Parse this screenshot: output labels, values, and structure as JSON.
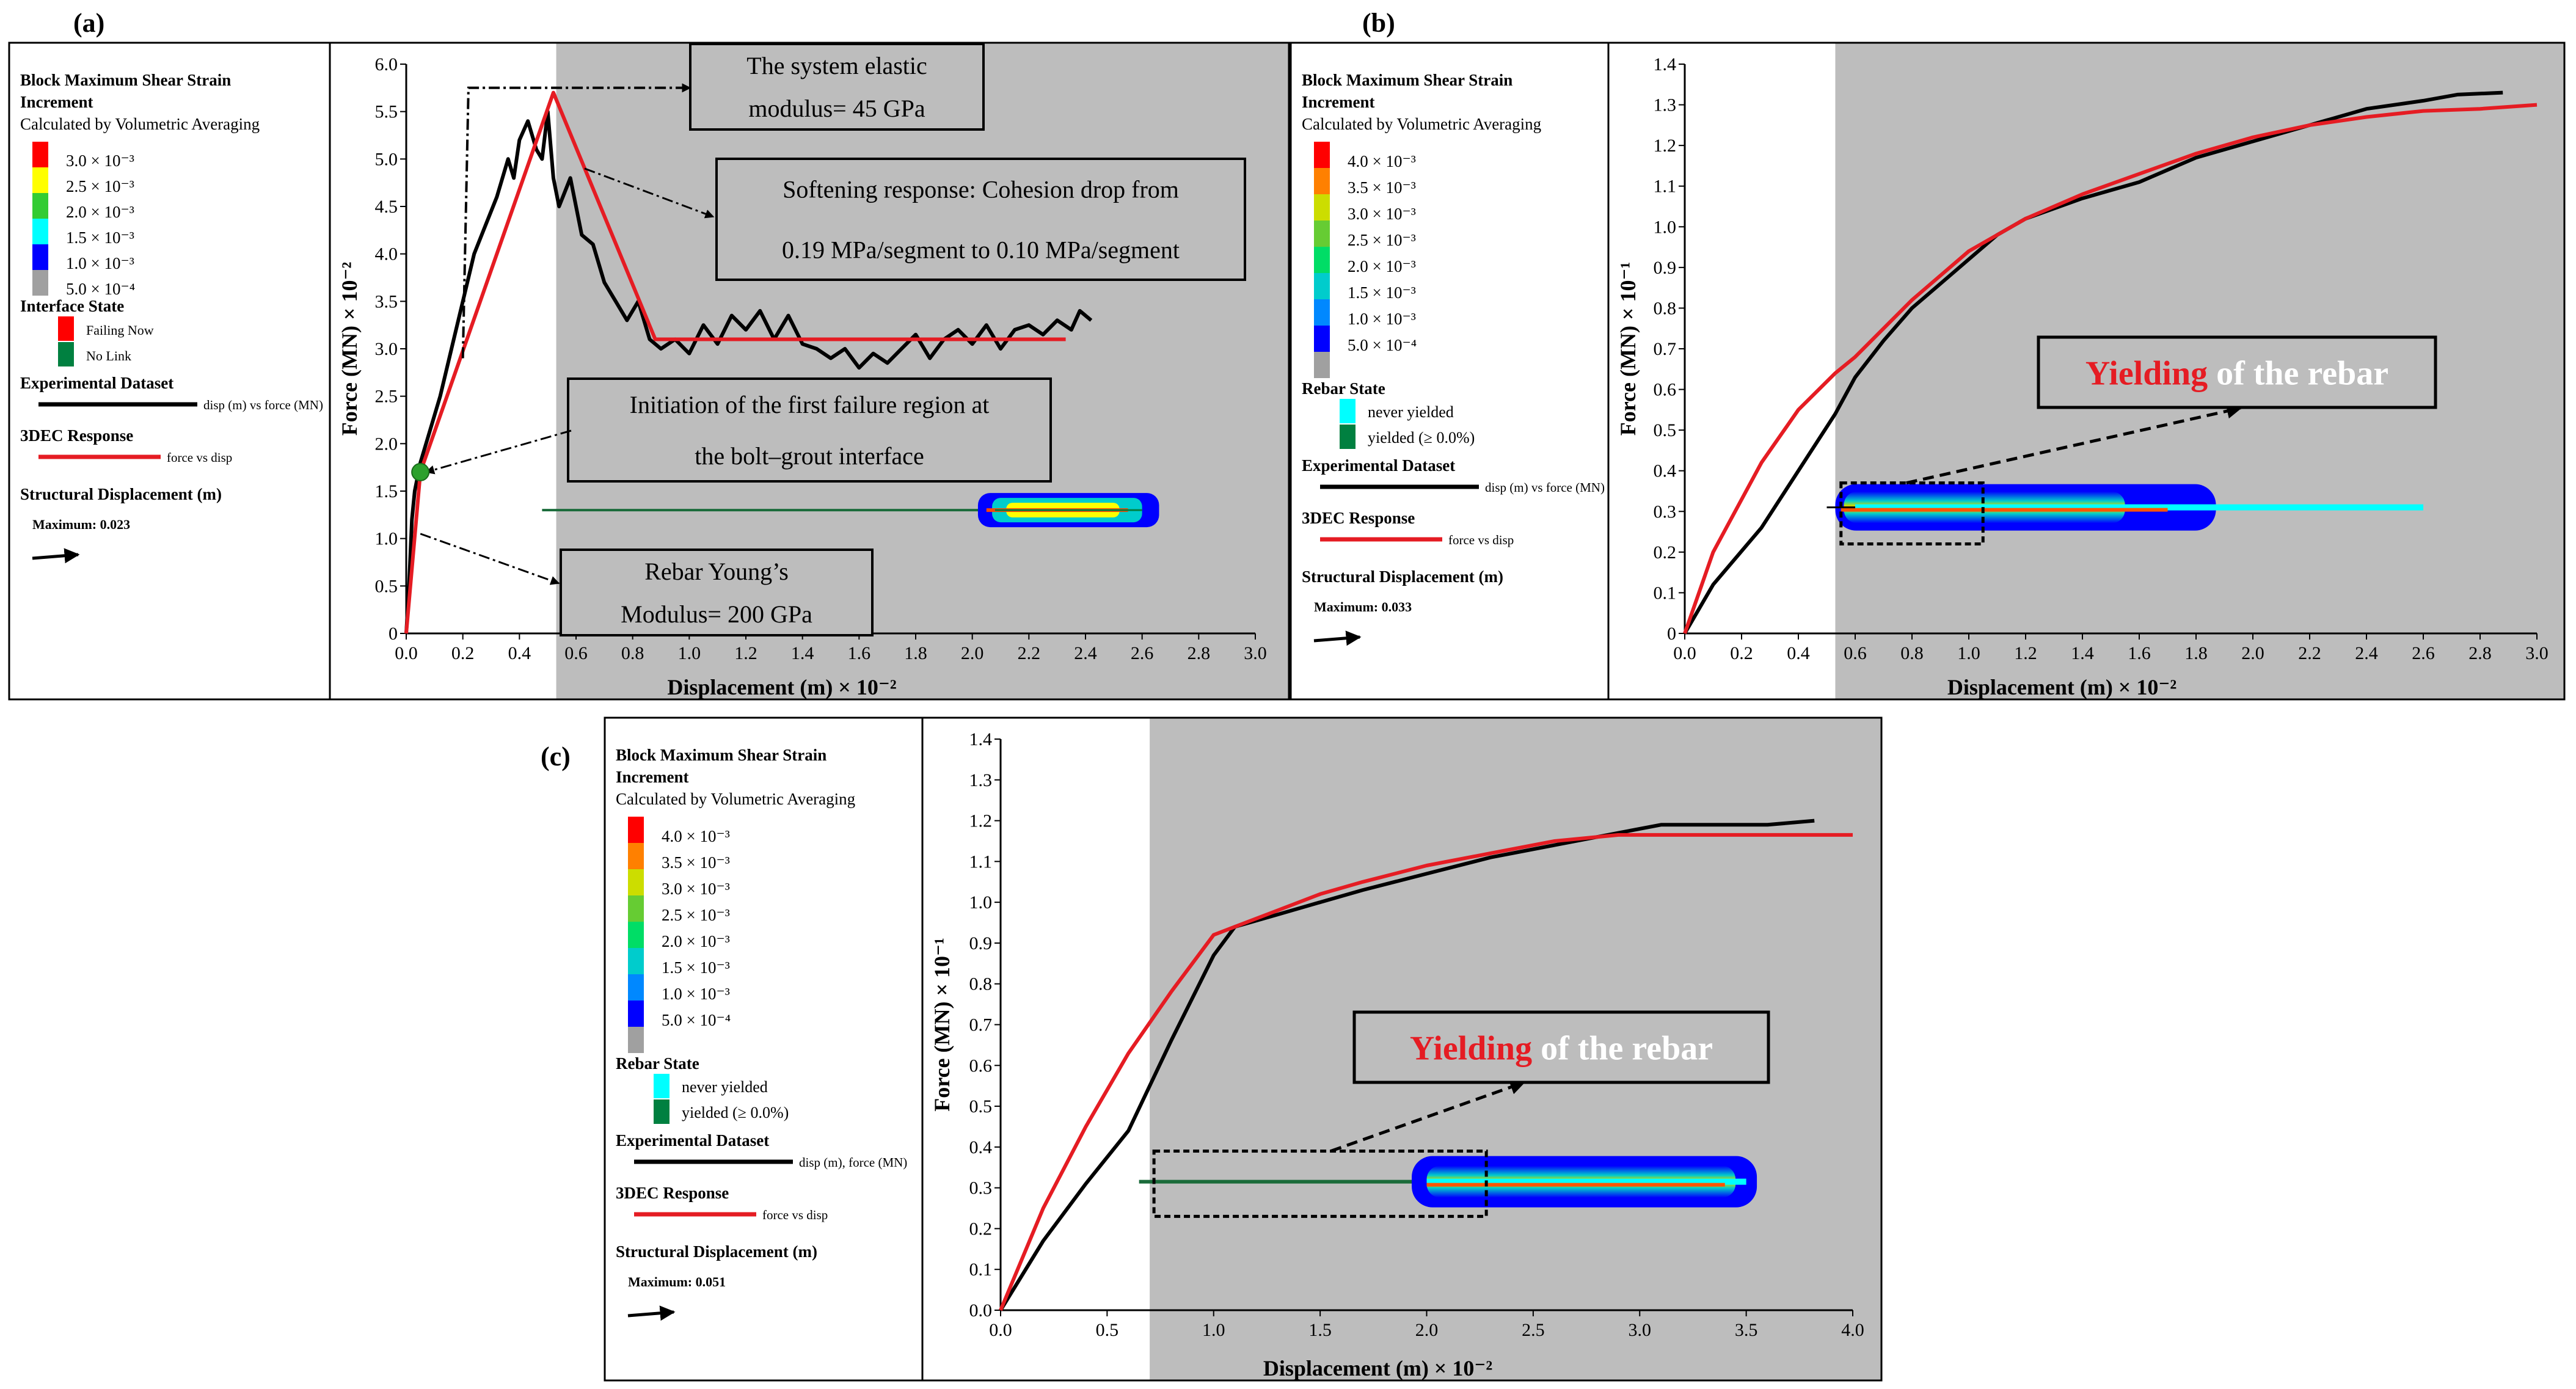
{
  "panel_labels": {
    "a": "(a)",
    "b": "(b)",
    "c": "(c)"
  },
  "colors": {
    "shaded": "#bdbdbd",
    "experimental": "#000000",
    "model": "#e51c23",
    "callout_fill": "#bdbdbd",
    "yield_red": "#e51c23",
    "yield_white": "#ffffff"
  },
  "legend_a": {
    "title1": "Block Maximum Shear Strain",
    "title2": "Increment",
    "subtitle": "Calculated by Volumetric Averaging",
    "scale": [
      {
        "label": "3.0 × 10⁻³",
        "color": "#ff0000"
      },
      {
        "label": "2.5 × 10⁻³",
        "color": "#ffff00"
      },
      {
        "label": "2.0 × 10⁻³",
        "color": "#33cc33"
      },
      {
        "label": "1.5 × 10⁻³",
        "color": "#00ffff"
      },
      {
        "label": "1.0 × 10⁻³",
        "color": "#0000ff"
      },
      {
        "label": "5.0 × 10⁻⁴",
        "color": "#a0a0a0"
      }
    ],
    "state_title": "Interface State",
    "state_items": [
      {
        "label": "Failing Now",
        "color": "#ff0000"
      },
      {
        "label": "No Link",
        "color": "#008040"
      }
    ],
    "exp_title": "Experimental Dataset",
    "exp_label": "disp (m) vs force (MN)",
    "model_title": "3DEC Response",
    "model_label": "force vs disp",
    "disp_title": "Structural Displacement (m)",
    "disp_max": "Maximum:  0.023"
  },
  "legend_b": {
    "title1": "Block Maximum Shear Strain",
    "title2": "Increment",
    "subtitle": "Calculated by Volumetric Averaging",
    "scale": [
      {
        "label": "4.0 × 10⁻³",
        "color": "#ff0000"
      },
      {
        "label": "3.5 × 10⁻³",
        "color": "#ff8000"
      },
      {
        "label": "3.0 × 10⁻³",
        "color": "#ccdd00"
      },
      {
        "label": "2.5 × 10⁻³",
        "color": "#66cc33"
      },
      {
        "label": "2.0 × 10⁻³",
        "color": "#00dd66"
      },
      {
        "label": "1.5 × 10⁻³",
        "color": "#00cccc"
      },
      {
        "label": "1.0 × 10⁻³",
        "color": "#0088ff"
      },
      {
        "label": "5.0 × 10⁻⁴",
        "color": "#0000ff"
      },
      {
        "label": "",
        "color": "#a0a0a0"
      }
    ],
    "state_title": "Rebar State",
    "state_items": [
      {
        "label": "never yielded",
        "color": "#00ffff"
      },
      {
        "label": "yielded (≥ 0.0%)",
        "color": "#008040"
      }
    ],
    "exp_title": "Experimental Dataset",
    "exp_label": "disp (m) vs force (MN)",
    "model_title": "3DEC Response",
    "model_label": "force vs disp",
    "disp_title": "Structural Displacement (m)",
    "disp_max": "Maximum:  0.033"
  },
  "legend_c": {
    "title1": "Block Maximum Shear Strain",
    "title2": "Increment",
    "subtitle": "Calculated by Volumetric Averaging",
    "scale": [
      {
        "label": "4.0 × 10⁻³",
        "color": "#ff0000"
      },
      {
        "label": "3.5 × 10⁻³",
        "color": "#ff8000"
      },
      {
        "label": "3.0 × 10⁻³",
        "color": "#ccdd00"
      },
      {
        "label": "2.5 × 10⁻³",
        "color": "#66cc33"
      },
      {
        "label": "2.0 × 10⁻³",
        "color": "#00dd66"
      },
      {
        "label": "1.5 × 10⁻³",
        "color": "#00cccc"
      },
      {
        "label": "1.0 × 10⁻³",
        "color": "#0088ff"
      },
      {
        "label": "5.0 × 10⁻⁴",
        "color": "#0000ff"
      },
      {
        "label": "",
        "color": "#a0a0a0"
      }
    ],
    "state_title": "Rebar State",
    "state_items": [
      {
        "label": "never yielded",
        "color": "#00ffff"
      },
      {
        "label": "yielded (≥ 0.0%)",
        "color": "#008040"
      }
    ],
    "exp_title": "Experimental Dataset",
    "exp_label": "disp (m), force (MN)",
    "model_title": "3DEC Response",
    "model_label": "force vs disp",
    "disp_title": "Structural Displacement (m)",
    "disp_max": "Maximum:  0.051"
  },
  "chart_data": [
    {
      "id": "a",
      "type": "line",
      "xlabel": "Displacement (m) × 10⁻²",
      "ylabel": "Force (MN) × 10⁻²",
      "xlim": [
        0,
        3.0
      ],
      "ylim": [
        0,
        6.0
      ],
      "xticks": [
        0.0,
        0.2,
        0.4,
        0.6,
        0.8,
        1.0,
        1.2,
        1.4,
        1.6,
        1.8,
        2.0,
        2.2,
        2.4,
        2.6,
        2.8,
        3.0
      ],
      "yticks": [
        0,
        0.5,
        1.0,
        1.5,
        2.0,
        2.5,
        3.0,
        3.5,
        4.0,
        4.5,
        5.0,
        5.5,
        6.0
      ],
      "xtick_labels": [
        "0.0",
        "0.2",
        "0.4",
        "0.6",
        "0.8",
        "1.0",
        "1.2",
        "1.4",
        "1.6",
        "1.8",
        "2.0",
        "2.2",
        "2.4",
        "2.6",
        "2.8",
        "3.0"
      ],
      "ytick_labels": [
        "0",
        "0.5",
        "1.0",
        "1.5",
        "2.0",
        "2.5",
        "3.0",
        "3.5",
        "4.0",
        "4.5",
        "5.0",
        "5.5",
        "6.0"
      ],
      "shaded_from_x": 0.53,
      "series": [
        {
          "name": "disp (m) vs force (MN)",
          "color": "#000000",
          "x": [
            0,
            0.01,
            0.02,
            0.03,
            0.05,
            0.08,
            0.12,
            0.16,
            0.2,
            0.24,
            0.28,
            0.32,
            0.36,
            0.38,
            0.4,
            0.43,
            0.46,
            0.48,
            0.5,
            0.52,
            0.54,
            0.58,
            0.62,
            0.66,
            0.7,
            0.74,
            0.78,
            0.82,
            0.86,
            0.9,
            0.95,
            1.0,
            1.05,
            1.1,
            1.15,
            1.2,
            1.25,
            1.3,
            1.35,
            1.4,
            1.45,
            1.5,
            1.55,
            1.6,
            1.65,
            1.7,
            1.75,
            1.8,
            1.85,
            1.9,
            1.95,
            2.0,
            2.05,
            2.1,
            2.15,
            2.2,
            2.25,
            2.3,
            2.35,
            2.38,
            2.42
          ],
          "y": [
            0,
            0.5,
            1.2,
            1.5,
            1.8,
            2.1,
            2.5,
            3.0,
            3.5,
            4.0,
            4.3,
            4.6,
            5.0,
            4.8,
            5.2,
            5.4,
            5.1,
            5.0,
            5.5,
            4.8,
            4.5,
            4.8,
            4.2,
            4.1,
            3.7,
            3.5,
            3.3,
            3.5,
            3.1,
            3.0,
            3.1,
            2.95,
            3.25,
            3.05,
            3.35,
            3.2,
            3.4,
            3.1,
            3.35,
            3.05,
            3.0,
            2.9,
            3.0,
            2.8,
            2.95,
            2.85,
            3.0,
            3.15,
            2.9,
            3.1,
            3.2,
            3.05,
            3.25,
            3.0,
            3.2,
            3.25,
            3.15,
            3.3,
            3.2,
            3.4,
            3.3
          ]
        },
        {
          "name": "force vs disp",
          "color": "#e51c23",
          "x": [
            0,
            0.05,
            0.52,
            0.88,
            2.33
          ],
          "y": [
            0,
            1.7,
            5.7,
            3.1,
            3.1
          ]
        }
      ],
      "annotations": [
        {
          "lines": [
            "The system elastic",
            "modulus= 45 GPa"
          ]
        },
        {
          "lines": [
            "Softening response: Cohesion drop from",
            "0.19 MPa/segment to 0.10 MPa/segment"
          ]
        },
        {
          "lines": [
            "Initiation of the first failure region at",
            "the bolt–grout interface"
          ]
        },
        {
          "lines": [
            "Rebar Young’s",
            "Modulus= 200 GPa"
          ]
        }
      ]
    },
    {
      "id": "b",
      "type": "line",
      "xlabel": "Displacement (m) × 10⁻²",
      "ylabel": "Force (MN) × 10⁻¹",
      "xlim": [
        0,
        3.0
      ],
      "ylim": [
        0,
        1.4
      ],
      "xticks": [
        0.0,
        0.2,
        0.4,
        0.6,
        0.8,
        1.0,
        1.2,
        1.4,
        1.6,
        1.8,
        2.0,
        2.2,
        2.4,
        2.6,
        2.8,
        3.0
      ],
      "yticks": [
        0,
        0.1,
        0.2,
        0.3,
        0.4,
        0.5,
        0.6,
        0.7,
        0.8,
        0.9,
        1.0,
        1.1,
        1.2,
        1.3,
        1.4
      ],
      "xtick_labels": [
        "0.0",
        "0.2",
        "0.4",
        "0.6",
        "0.8",
        "1.0",
        "1.2",
        "1.4",
        "1.6",
        "1.8",
        "2.0",
        "2.2",
        "2.4",
        "2.6",
        "2.8",
        "3.0"
      ],
      "ytick_labels": [
        "0",
        "0.1",
        "0.2",
        "0.3",
        "0.4",
        "0.5",
        "0.6",
        "0.7",
        "0.8",
        "0.9",
        "1.0",
        "1.1",
        "1.2",
        "1.3",
        "1.4"
      ],
      "shaded_from_x": 0.53,
      "series": [
        {
          "name": "disp (m) vs force (MN)",
          "color": "#000000",
          "x": [
            0,
            0.1,
            0.27,
            0.4,
            0.53,
            0.6,
            0.7,
            0.8,
            0.9,
            1.0,
            1.1,
            1.2,
            1.4,
            1.6,
            1.8,
            2.0,
            2.2,
            2.4,
            2.6,
            2.72,
            2.88
          ],
          "y": [
            0,
            0.12,
            0.26,
            0.4,
            0.54,
            0.63,
            0.72,
            0.8,
            0.86,
            0.92,
            0.98,
            1.02,
            1.07,
            1.11,
            1.17,
            1.21,
            1.25,
            1.29,
            1.31,
            1.325,
            1.33
          ]
        },
        {
          "name": "force vs disp",
          "color": "#e51c23",
          "x": [
            0,
            0.1,
            0.27,
            0.4,
            0.53,
            0.6,
            0.8,
            1.0,
            1.2,
            1.4,
            1.6,
            1.8,
            2.0,
            2.2,
            2.4,
            2.6,
            2.8,
            3.0
          ],
          "y": [
            0,
            0.2,
            0.42,
            0.55,
            0.64,
            0.68,
            0.82,
            0.94,
            1.02,
            1.08,
            1.13,
            1.18,
            1.22,
            1.25,
            1.27,
            1.285,
            1.29,
            1.3
          ]
        }
      ],
      "annotations": [
        {
          "lines": [
            "Yielding",
            "of the rebar"
          ]
        }
      ]
    },
    {
      "id": "c",
      "type": "line",
      "xlabel": "Displacement (m) × 10⁻²",
      "ylabel": "Force (MN) × 10⁻¹",
      "xlim": [
        0,
        4.0
      ],
      "ylim": [
        0,
        1.4
      ],
      "xticks": [
        0.0,
        0.5,
        1.0,
        1.5,
        2.0,
        2.5,
        3.0,
        3.5,
        4.0
      ],
      "yticks": [
        0,
        0.1,
        0.2,
        0.3,
        0.4,
        0.5,
        0.6,
        0.7,
        0.8,
        0.9,
        1.0,
        1.1,
        1.2,
        1.3,
        1.4
      ],
      "xtick_labels": [
        "0.0",
        "0.5",
        "1.0",
        "1.5",
        "2.0",
        "2.5",
        "3.0",
        "3.5",
        "4.0"
      ],
      "ytick_labels": [
        "0.0",
        "0.1",
        "0.2",
        "0.3",
        "0.4",
        "0.5",
        "0.6",
        "0.7",
        "0.8",
        "0.9",
        "1.0",
        "1.1",
        "1.2",
        "1.3",
        "1.4"
      ],
      "shaded_from_x": 0.7,
      "series": [
        {
          "name": "disp (m), force (MN)",
          "color": "#000000",
          "x": [
            0,
            0.2,
            0.4,
            0.6,
            0.8,
            1.0,
            1.1,
            1.3,
            1.5,
            1.7,
            2.0,
            2.3,
            2.6,
            2.9,
            3.1,
            3.4,
            3.6,
            3.82
          ],
          "y": [
            0,
            0.17,
            0.31,
            0.44,
            0.66,
            0.87,
            0.94,
            0.97,
            1.0,
            1.03,
            1.07,
            1.11,
            1.14,
            1.17,
            1.19,
            1.19,
            1.19,
            1.2
          ]
        },
        {
          "name": "force vs disp",
          "color": "#e51c23",
          "x": [
            0,
            0.2,
            0.4,
            0.6,
            0.8,
            1.0,
            1.1,
            1.3,
            1.5,
            1.7,
            2.0,
            2.3,
            2.6,
            2.9,
            3.0,
            3.2,
            3.5,
            4.0
          ],
          "y": [
            0,
            0.25,
            0.45,
            0.63,
            0.78,
            0.92,
            0.94,
            0.98,
            1.02,
            1.05,
            1.09,
            1.12,
            1.15,
            1.165,
            1.165,
            1.165,
            1.165,
            1.165
          ]
        }
      ],
      "annotations": [
        {
          "lines": [
            "Yielding",
            "of the rebar"
          ]
        }
      ]
    }
  ]
}
